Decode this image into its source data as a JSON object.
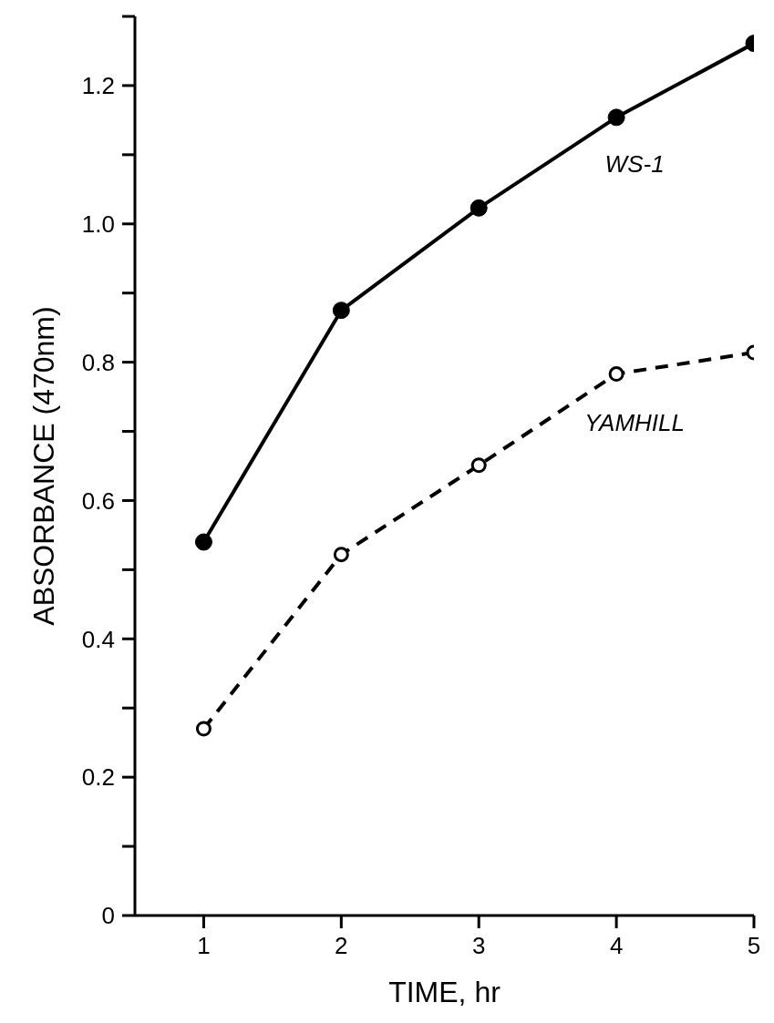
{
  "chart_data": {
    "type": "line",
    "xlabel": "TIME, hr",
    "ylabel": "ABSORBANCE (470nm)",
    "x": [
      1,
      2,
      3,
      4,
      5
    ],
    "series": [
      {
        "name": "WS-1",
        "color": "#000000",
        "values": [
          0.54,
          0.875,
          1.023,
          1.154,
          1.261
        ],
        "line_style": "solid"
      },
      {
        "name": "YAMHILL",
        "color": "#000000",
        "values": [
          0.27,
          0.522,
          0.651,
          0.783,
          0.814
        ],
        "line_style": "dashed"
      }
    ],
    "xlim": [
      0.5,
      5
    ],
    "xticks": [
      1,
      2,
      3,
      4,
      5
    ],
    "ylim": [
      0,
      1.3
    ],
    "yticks": [
      0,
      {
        "value": 0.1,
        "label": null
      },
      0.2,
      {
        "value": 0.3,
        "label": null
      },
      0.4,
      {
        "value": 0.5,
        "label": null
      },
      0.6,
      {
        "value": 0.7,
        "label": null
      },
      0.8,
      {
        "value": 0.9,
        "label": null
      },
      {
        "value": 1.0,
        "label": "1.0"
      },
      {
        "value": 1.1,
        "label": null
      },
      1.2,
      {
        "value": 1.3,
        "label": null
      }
    ],
    "marker": "circle",
    "grid": false,
    "legend": false
  }
}
